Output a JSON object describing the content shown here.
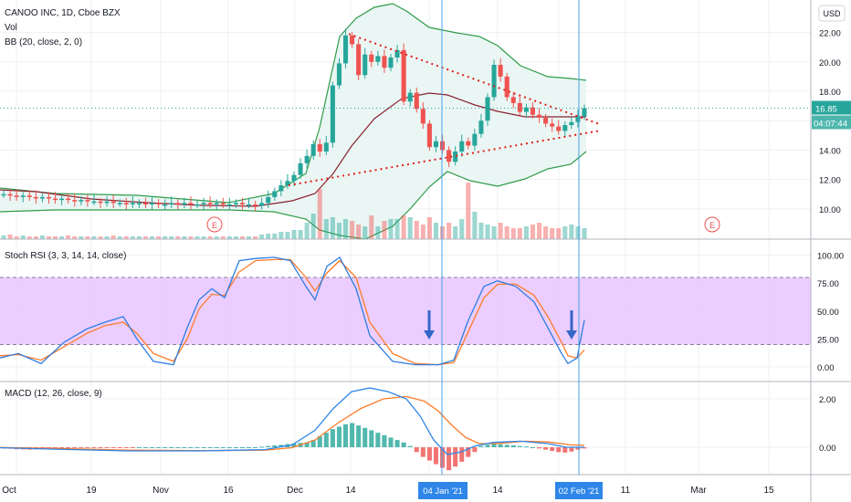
{
  "header": {
    "symbol_line": "CANOO INC, 1D, Cboe BZX",
    "vol_label": "Vol",
    "bb_label": "BB (20, close, 2, 0)",
    "currency": "USD"
  },
  "panes": {
    "stoch_label": "Stoch RSI (3, 3, 14, 14, close)",
    "macd_label": "MACD (12, 26, close, 9)"
  },
  "price_axis": {
    "ticks": [
      "22.00",
      "20.00",
      "18.00",
      "16.00",
      "14.00",
      "12.00",
      "10.00"
    ],
    "last_price": "16.85",
    "countdown": "04:07:44"
  },
  "stoch_axis": {
    "ticks": [
      "100.00",
      "75.00",
      "50.00",
      "25.00",
      "0.00"
    ]
  },
  "macd_axis": {
    "ticks": [
      "2.00",
      "0.00"
    ]
  },
  "time_axis": {
    "labels": [
      "Oct",
      "19",
      "Nov",
      "16",
      "Dec",
      "14",
      "14",
      "11",
      "Mar",
      "15"
    ],
    "highlight_left": "04 Jan '21",
    "highlight_right": "02 Feb '21"
  },
  "events": [
    "E",
    "E"
  ],
  "colors": {
    "up": "#26a69a",
    "down": "#ef5350",
    "bb_fill": "#e8f5f3",
    "bb_band": "#2e9c4a",
    "bb_basis": "#8b2230",
    "trendline": "#e0201a",
    "stoch_band": "#e7c5ff",
    "stoch_k": "#2f7de1",
    "stoch_d": "#ff7b28",
    "macd_line": "#2f86e8",
    "signal_line": "#ff7b28",
    "marker": "#4aa3e6",
    "arrow": "#3566c8"
  },
  "chart_data": [
    {
      "type": "candlestick",
      "title": "CANOO INC, 1D, Cboe BZX",
      "ylim": [
        9,
        23
      ],
      "x": [
        "Oct 5",
        "Oct 12",
        "Oct 19",
        "Oct 26",
        "Nov 2",
        "Nov 9",
        "Nov 16",
        "Nov 23",
        "Nov 30",
        "Dec 7",
        "Dec 10",
        "Dec 14",
        "Dec 17",
        "Dec 21",
        "Dec 28",
        "Jan 4",
        "Jan 8",
        "Jan 12",
        "Jan 14",
        "Jan 20",
        "Jan 25",
        "Feb 1",
        "Feb 2"
      ],
      "close": [
        10.9,
        10.7,
        10.6,
        10.5,
        10.4,
        10.4,
        10.9,
        12.4,
        14.6,
        20.2,
        21.8,
        19.6,
        20.5,
        17.3,
        14.1,
        13.2,
        14.4,
        17.6,
        17.2,
        16.5,
        15.7,
        16.2,
        16.85
      ],
      "bollinger": {
        "upper_max": 22.9,
        "basis_peak": 17.7,
        "lower_min": 9.5
      },
      "trendlines": [
        {
          "from": [
            "Dec 10",
            21.9
          ],
          "to": [
            "Feb 2",
            15.9
          ]
        },
        {
          "from": [
            "Nov 25",
            11.5
          ],
          "to": [
            "Feb 2",
            15.2
          ]
        }
      ]
    },
    {
      "type": "line",
      "title": "Stoch RSI (3, 3, 14, 14, close)",
      "ylim": [
        0,
        100
      ],
      "bands": [
        20,
        80
      ],
      "series": [
        {
          "name": "K",
          "values": [
            15,
            10,
            5,
            28,
            40,
            15,
            2,
            60,
            68,
            95,
            97,
            70,
            98,
            60,
            20,
            2,
            2,
            50,
            77,
            70,
            55,
            3,
            40
          ]
        },
        {
          "name": "D",
          "values": [
            13,
            12,
            6,
            22,
            36,
            20,
            5,
            55,
            62,
            92,
            95,
            75,
            94,
            66,
            28,
            5,
            2,
            42,
            74,
            72,
            58,
            10,
            15
          ]
        }
      ]
    },
    {
      "type": "line",
      "title": "MACD (12, 26, close, 9)",
      "ylim": [
        -1.2,
        2.6
      ],
      "series": [
        {
          "name": "MACD",
          "values": [
            0,
            -0.05,
            -0.08,
            -0.12,
            -0.15,
            -0.15,
            -0.1,
            0.1,
            0.5,
            1.5,
            2.3,
            2.2,
            2.0,
            1.2,
            0.3,
            -0.25,
            -0.3,
            0.0,
            0.2,
            0.2,
            0.15,
            -0.05,
            0.0
          ]
        },
        {
          "name": "Signal",
          "values": [
            0,
            -0.03,
            -0.06,
            -0.1,
            -0.13,
            -0.14,
            -0.12,
            -0.05,
            0.2,
            0.9,
            1.7,
            2.0,
            2.1,
            1.8,
            1.0,
            0.3,
            -0.05,
            -0.1,
            0.05,
            0.15,
            0.2,
            0.05,
            0.05
          ]
        }
      ]
    }
  ]
}
